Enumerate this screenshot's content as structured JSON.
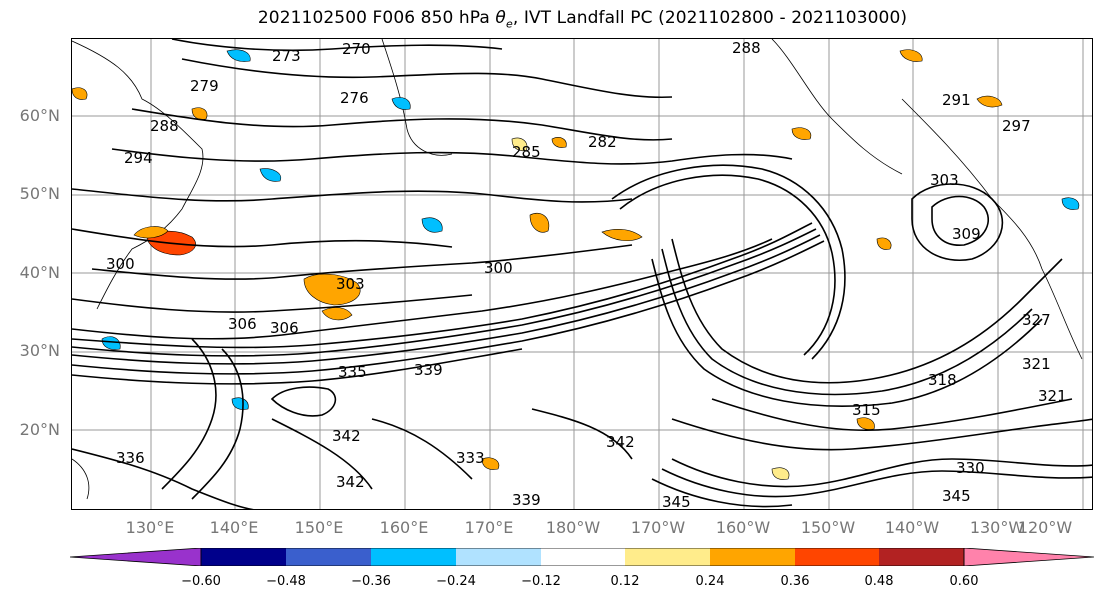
{
  "title_main": "2021102500 F006 850 hPa ",
  "title_theta": "θ",
  "title_sub": "e",
  "title_rest": ", IVT Landfall PC (2021102800 - 2021103000)",
  "lat_labels": [
    "60°N",
    "50°N",
    "40°N",
    "30°N",
    "20°N"
  ],
  "lon_labels": [
    "130°E",
    "140°E",
    "150°E",
    "160°E",
    "170°E",
    "180°W",
    "170°W",
    "160°W",
    "150°W",
    "140°W",
    "130°W",
    "120°W"
  ],
  "contour_labels": [
    "273",
    "270",
    "276",
    "279",
    "288",
    "294",
    "282",
    "285",
    "291",
    "297",
    "288",
    "300",
    "303",
    "309",
    "306",
    "300",
    "306",
    "303",
    "327",
    "321",
    "339",
    "335",
    "342",
    "336",
    "345",
    "342",
    "339",
    "330",
    "345",
    "315",
    "318",
    "321",
    "333",
    "342"
  ],
  "colorbar": {
    "colors": [
      "#9932CC",
      "#00008B",
      "#3A5FCD",
      "#00BFFF",
      "#B0E2FF",
      "#FFFFFF",
      "#FFEC8B",
      "#FFA500",
      "#FF4500",
      "#B22222",
      "#FF82AB"
    ],
    "tick_labels": [
      "−0.60",
      "−0.48",
      "−0.36",
      "−0.24",
      "−0.12",
      "0.12",
      "0.24",
      "0.36",
      "0.48",
      "0.60"
    ]
  }
}
